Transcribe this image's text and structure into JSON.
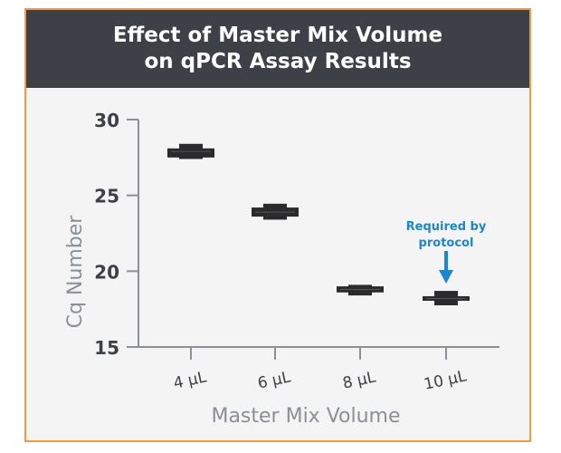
{
  "chart_data": {
    "type": "box",
    "title_line1": "Effect of Master Mix Volume",
    "title_line2": "on qPCR Assay Results",
    "xlabel": "Master Mix Volume",
    "ylabel": "Cq Number",
    "categories": [
      "4 µL",
      "6 µL",
      "8 µL",
      "10 µL"
    ],
    "ylim": [
      15,
      30
    ],
    "yticks": [
      15,
      20,
      25,
      30
    ],
    "series": [
      {
        "name": "4 µL",
        "median": 27.9,
        "narrow_range": [
          27.4,
          28.4
        ],
        "wide_range": [
          27.5,
          28.1
        ]
      },
      {
        "name": "6 µL",
        "median": 23.9,
        "narrow_range": [
          23.4,
          24.45
        ],
        "wide_range": [
          23.6,
          24.2
        ]
      },
      {
        "name": "8 µL",
        "median": 18.8,
        "narrow_range": [
          18.4,
          19.1
        ],
        "wide_range": [
          18.6,
          19.0
        ]
      },
      {
        "name": "10 µL",
        "median": 18.2,
        "narrow_range": [
          17.75,
          18.7
        ],
        "wide_range": [
          18.05,
          18.35
        ]
      }
    ],
    "annotation": {
      "line1": "Required by",
      "line2": "protocol",
      "category": "10 µL"
    },
    "colors": {
      "box": "#2b2b2d",
      "axis": "#8a9096",
      "annotation": "#1a87d0",
      "border": "#f39a3b",
      "header": "#3d4147"
    }
  }
}
